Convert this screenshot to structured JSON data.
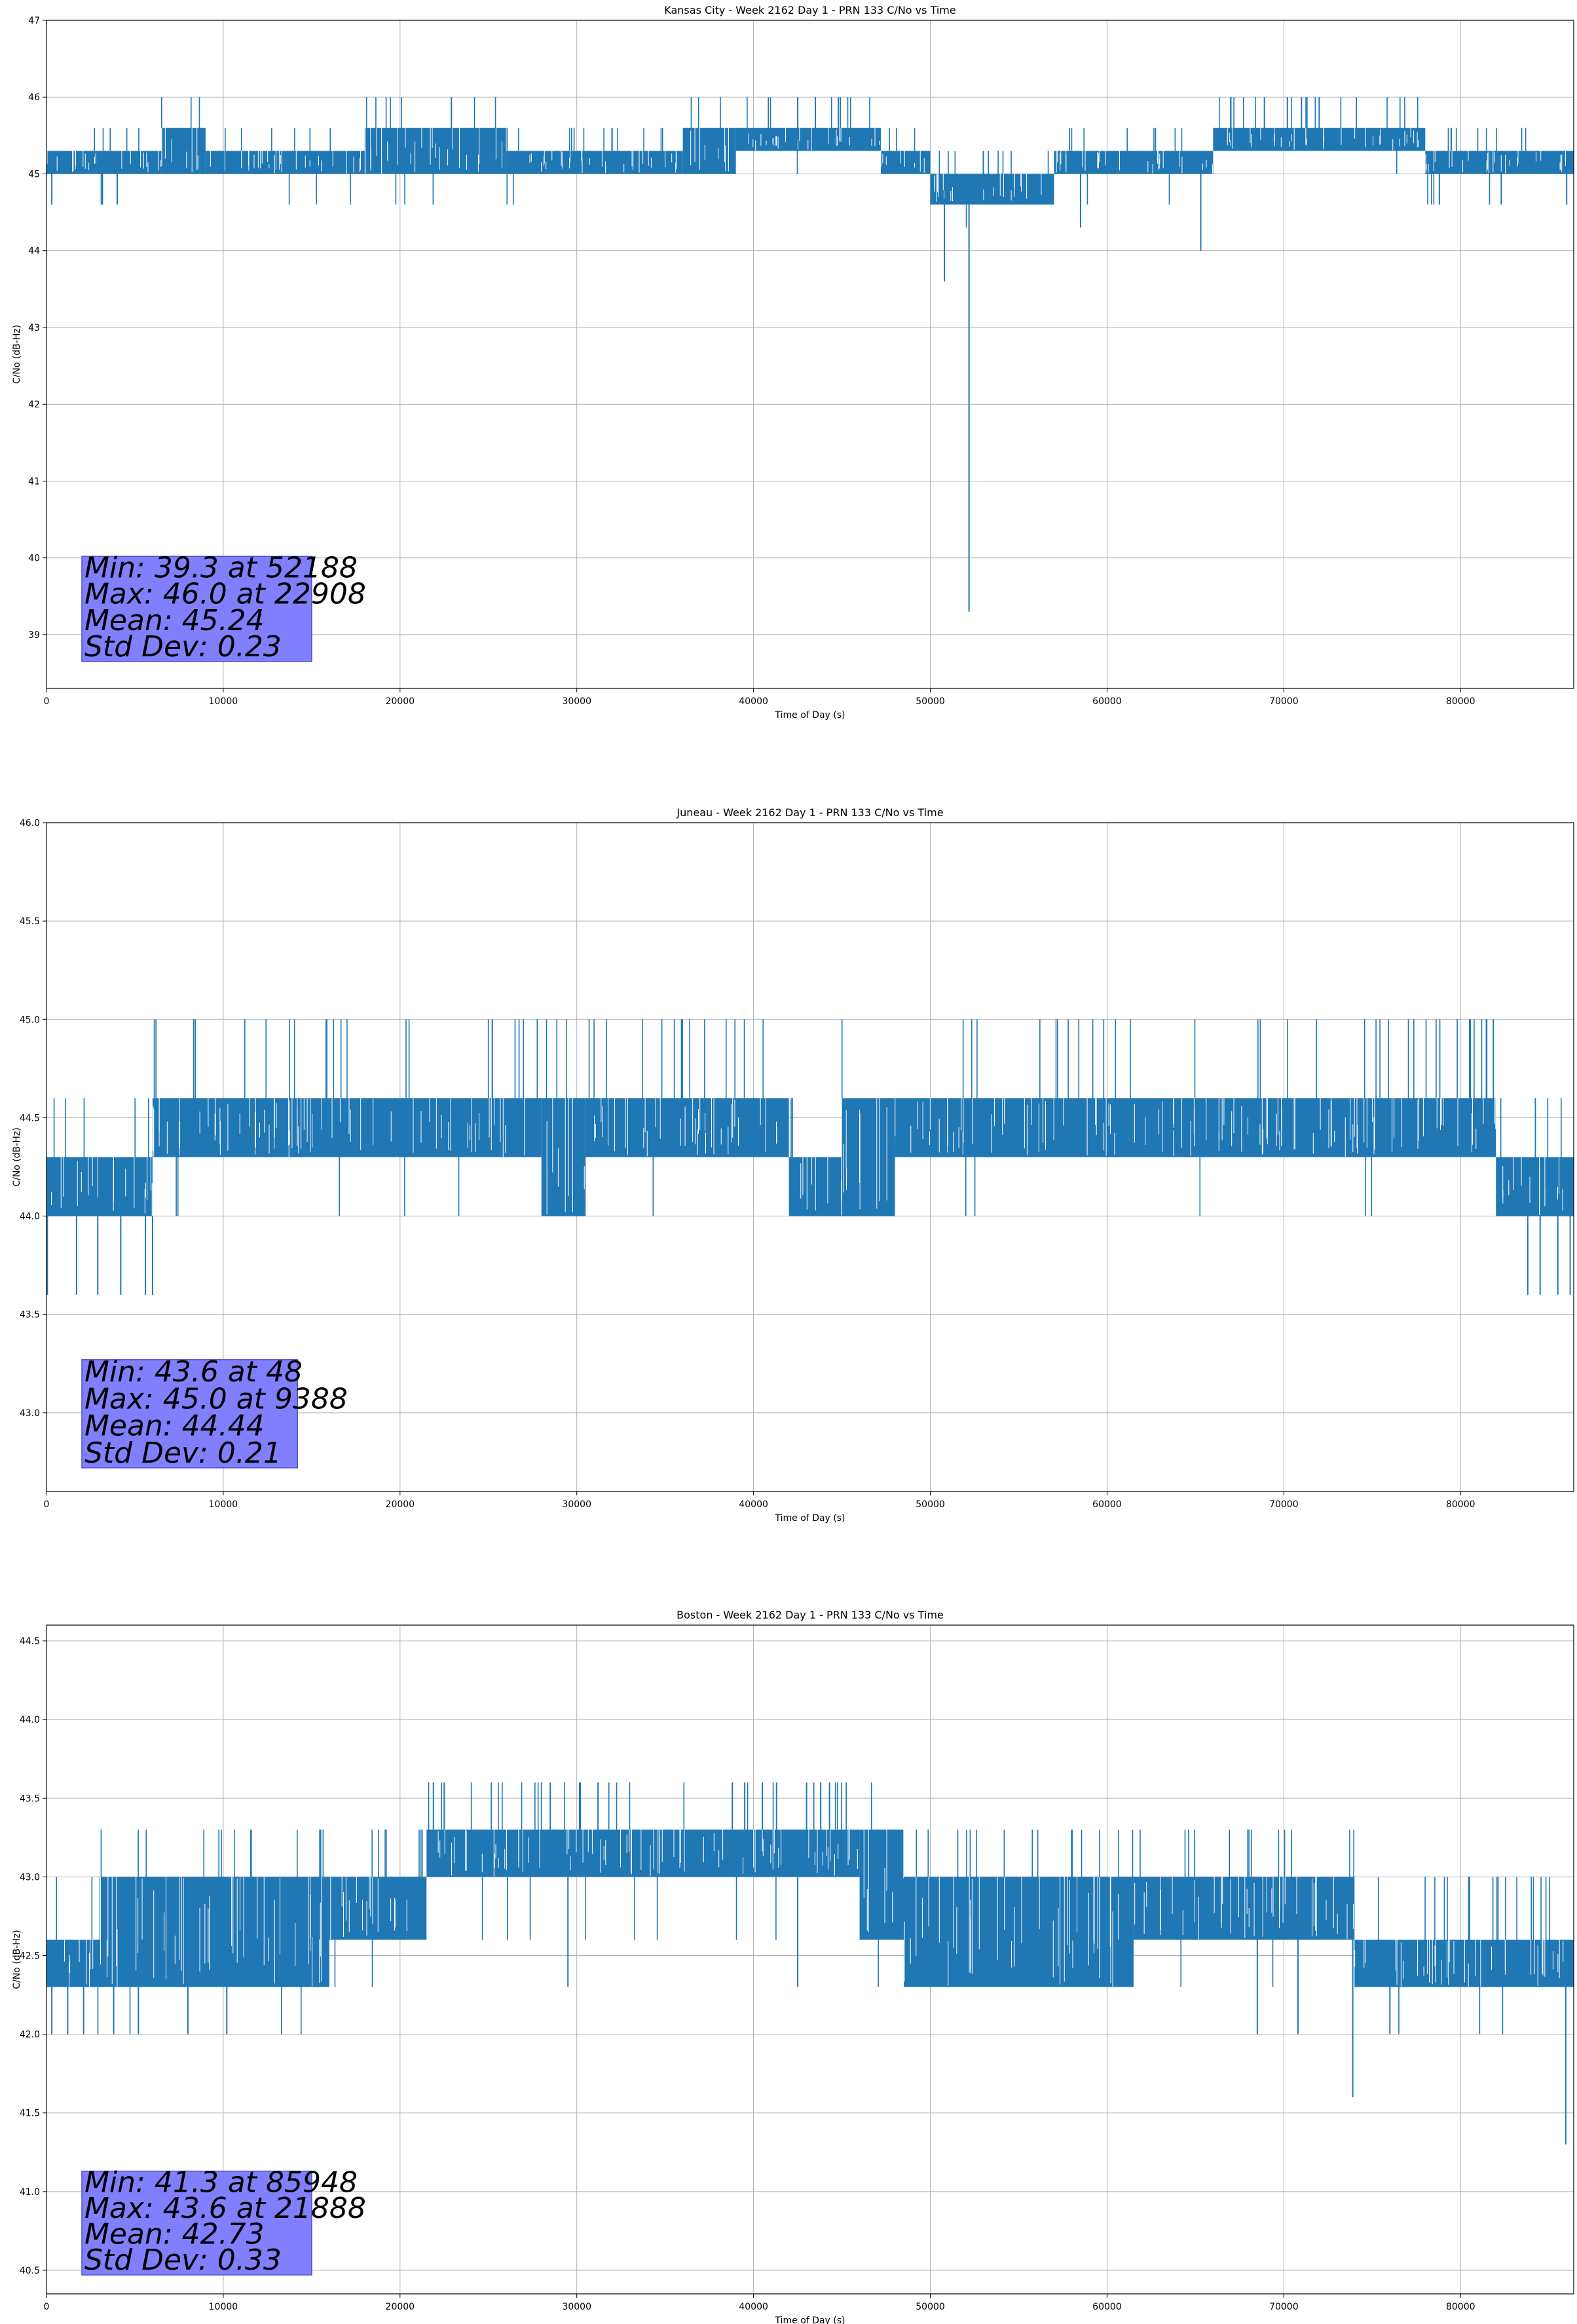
{
  "colors": {
    "line": "#1f77b4",
    "grid": "#b0b0b0",
    "stats_box": "#8080ff",
    "stats_border": "#5050cc"
  },
  "chart_data": [
    {
      "type": "line",
      "title": "Kansas City - Week 2162 Day 1 - PRN 133 C/No vs Time",
      "xlabel": "Time of Day (s)",
      "ylabel": "C/No (dB-Hz)",
      "xlim": [
        0,
        86400
      ],
      "ylim": [
        38.3,
        47.0
      ],
      "grid": true,
      "x_ticks": [
        0,
        10000,
        20000,
        30000,
        40000,
        50000,
        60000,
        70000,
        80000
      ],
      "x_tick_labels": [
        "0",
        "10000",
        "20000",
        "30000",
        "40000",
        "50000",
        "60000",
        "70000",
        "80000"
      ],
      "y_ticks": [
        39,
        40,
        41,
        42,
        43,
        44,
        45,
        46,
        47
      ],
      "y_tick_labels": [
        "39",
        "40",
        "41",
        "42",
        "43",
        "44",
        "45",
        "46",
        "47"
      ],
      "stats": [
        "Min: 39.3 at 52188",
        "Max: 46.0 at 22908",
        "Mean: 45.24",
        "Std Dev: 0.23"
      ],
      "series": [
        {
          "levels": [
            45.0,
            45.3,
            45.6,
            44.6,
            44.3,
            46.0,
            44.0,
            43.6,
            39.3
          ],
          "bands": [
            {
              "x": [
                0,
                6500
              ],
              "y": [
                45.0,
                45.3
              ]
            },
            {
              "x": [
                6500,
                9000
              ],
              "y": [
                45.0,
                45.6
              ]
            },
            {
              "x": [
                9000,
                18000
              ],
              "y": [
                45.0,
                45.3
              ]
            },
            {
              "x": [
                18000,
                26000
              ],
              "y": [
                45.0,
                45.6
              ]
            },
            {
              "x": [
                26000,
                36000
              ],
              "y": [
                45.0,
                45.3
              ]
            },
            {
              "x": [
                36000,
                39000
              ],
              "y": [
                45.0,
                45.6
              ]
            },
            {
              "x": [
                39000,
                47200
              ],
              "y": [
                45.3,
                45.6
              ]
            },
            {
              "x": [
                47200,
                50000
              ],
              "y": [
                45.0,
                45.3
              ]
            },
            {
              "x": [
                50000,
                57000
              ],
              "y": [
                44.6,
                45.0
              ]
            },
            {
              "x": [
                57000,
                66000
              ],
              "y": [
                45.0,
                45.3
              ]
            },
            {
              "x": [
                66000,
                78000
              ],
              "y": [
                45.3,
                45.6
              ]
            },
            {
              "x": [
                78000,
                86400
              ],
              "y": [
                45.0,
                45.3
              ]
            }
          ],
          "spikes": [
            {
              "x": 300,
              "y": 44.6
            },
            {
              "x": 3100,
              "y": 44.6
            },
            {
              "x": 4000,
              "y": 44.6
            },
            {
              "x": 22908,
              "y": 46.0
            },
            {
              "x": 42500,
              "y": 46.0
            },
            {
              "x": 43500,
              "y": 46.0
            },
            {
              "x": 44800,
              "y": 46.0
            },
            {
              "x": 50800,
              "y": 43.6
            },
            {
              "x": 52188,
              "y": 39.3
            },
            {
              "x": 53000,
              "y": 45.3
            },
            {
              "x": 58500,
              "y": 44.3
            },
            {
              "x": 65300,
              "y": 44.0
            },
            {
              "x": 68900,
              "y": 46.0
            },
            {
              "x": 70200,
              "y": 46.0
            },
            {
              "x": 71000,
              "y": 46.0
            },
            {
              "x": 72000,
              "y": 46.0
            },
            {
              "x": 78800,
              "y": 44.6
            },
            {
              "x": 82300,
              "y": 44.6
            },
            {
              "x": 86000,
              "y": 44.6
            }
          ]
        }
      ]
    },
    {
      "type": "line",
      "title": "Juneau - Week 2162 Day 1 - PRN 133 C/No vs Time",
      "xlabel": "Time of Day (s)",
      "ylabel": "C/No (dB-Hz)",
      "xlim": [
        0,
        86400
      ],
      "ylim": [
        42.6,
        46.0
      ],
      "grid": true,
      "x_ticks": [
        0,
        10000,
        20000,
        30000,
        40000,
        50000,
        60000,
        70000,
        80000
      ],
      "x_tick_labels": [
        "0",
        "10000",
        "20000",
        "30000",
        "40000",
        "50000",
        "60000",
        "70000",
        "80000"
      ],
      "y_ticks": [
        43.0,
        43.5,
        44.0,
        44.5,
        45.0,
        45.5,
        46.0
      ],
      "y_tick_labels": [
        "43.0",
        "43.5",
        "44.0",
        "44.5",
        "45.0",
        "45.5",
        "46.0"
      ],
      "stats": [
        "Min: 43.6 at 48",
        "Max: 45.0 at 9388",
        "Mean: 44.44",
        "Std Dev: 0.21"
      ],
      "series": [
        {
          "levels": [
            44.0,
            44.3,
            44.6,
            45.0,
            43.6
          ],
          "bands": [
            {
              "x": [
                0,
                6000
              ],
              "y": [
                44.0,
                44.3
              ]
            },
            {
              "x": [
                6000,
                28000
              ],
              "y": [
                44.3,
                44.6
              ]
            },
            {
              "x": [
                28000,
                30500
              ],
              "y": [
                44.0,
                44.6
              ]
            },
            {
              "x": [
                30500,
                42000
              ],
              "y": [
                44.3,
                44.6
              ]
            },
            {
              "x": [
                42000,
                45000
              ],
              "y": [
                44.0,
                44.3
              ]
            },
            {
              "x": [
                45000,
                48000
              ],
              "y": [
                44.0,
                44.6
              ]
            },
            {
              "x": [
                48000,
                82000
              ],
              "y": [
                44.3,
                44.6
              ]
            },
            {
              "x": [
                82000,
                86400
              ],
              "y": [
                44.0,
                44.3
              ]
            }
          ],
          "spikes": [
            {
              "x": 48,
              "y": 43.6
            },
            {
              "x": 1700,
              "y": 43.6
            },
            {
              "x": 2900,
              "y": 43.6
            },
            {
              "x": 4200,
              "y": 43.6
            },
            {
              "x": 5600,
              "y": 43.6
            },
            {
              "x": 6000,
              "y": 43.6
            },
            {
              "x": 83800,
              "y": 43.6
            },
            {
              "x": 84500,
              "y": 43.6
            },
            {
              "x": 85500,
              "y": 43.6
            },
            {
              "x": 86200,
              "y": 43.6
            }
          ]
        }
      ]
    },
    {
      "type": "line",
      "title": "Boston - Week 2162 Day 1 - PRN 133 C/No vs Time",
      "xlabel": "Time of Day (s)",
      "ylabel": "C/No (dB-Hz)",
      "xlim": [
        0,
        86400
      ],
      "ylim": [
        40.35,
        44.6
      ],
      "grid": true,
      "x_ticks": [
        0,
        10000,
        20000,
        30000,
        40000,
        50000,
        60000,
        70000,
        80000
      ],
      "x_tick_labels": [
        "0",
        "10000",
        "20000",
        "30000",
        "40000",
        "50000",
        "60000",
        "70000",
        "80000"
      ],
      "y_ticks": [
        40.5,
        41.0,
        41.5,
        42.0,
        42.5,
        43.0,
        43.5,
        44.0,
        44.5
      ],
      "y_tick_labels": [
        "40.5",
        "41.0",
        "41.5",
        "42.0",
        "42.5",
        "43.0",
        "43.5",
        "44.0",
        "44.5"
      ],
      "stats": [
        "Min: 41.3 at 85948",
        "Max: 43.6 at 21888",
        "Mean: 42.73",
        "Std Dev: 0.33"
      ],
      "series": [
        {
          "levels": [
            42.0,
            42.3,
            42.6,
            43.0,
            43.3,
            43.6,
            41.6,
            41.3
          ],
          "bands": [
            {
              "x": [
                0,
                3000
              ],
              "y": [
                42.3,
                42.6
              ]
            },
            {
              "x": [
                3000,
                16000
              ],
              "y": [
                42.3,
                43.0
              ]
            },
            {
              "x": [
                16000,
                21500
              ],
              "y": [
                42.6,
                43.0
              ]
            },
            {
              "x": [
                21500,
                46000
              ],
              "y": [
                43.0,
                43.3
              ]
            },
            {
              "x": [
                46000,
                48500
              ],
              "y": [
                42.6,
                43.3
              ]
            },
            {
              "x": [
                48500,
                61500
              ],
              "y": [
                42.3,
                43.0
              ]
            },
            {
              "x": [
                61500,
                74000
              ],
              "y": [
                42.6,
                43.0
              ]
            },
            {
              "x": [
                74000,
                86400
              ],
              "y": [
                42.3,
                42.6
              ]
            }
          ],
          "spikes": [
            {
              "x": 300,
              "y": 42.0
            },
            {
              "x": 1200,
              "y": 42.0
            },
            {
              "x": 2100,
              "y": 42.0
            },
            {
              "x": 3800,
              "y": 42.0
            },
            {
              "x": 5200,
              "y": 42.0
            },
            {
              "x": 8000,
              "y": 42.0
            },
            {
              "x": 10200,
              "y": 42.0
            },
            {
              "x": 21888,
              "y": 43.6
            },
            {
              "x": 22500,
              "y": 43.6
            },
            {
              "x": 28500,
              "y": 43.6
            },
            {
              "x": 30200,
              "y": 43.6
            },
            {
              "x": 31200,
              "y": 43.6
            },
            {
              "x": 38800,
              "y": 43.6
            },
            {
              "x": 39500,
              "y": 43.6
            },
            {
              "x": 40500,
              "y": 43.6
            },
            {
              "x": 41300,
              "y": 43.6
            },
            {
              "x": 43000,
              "y": 43.6
            },
            {
              "x": 43800,
              "y": 43.6
            },
            {
              "x": 44300,
              "y": 43.6
            },
            {
              "x": 42500,
              "y": 42.3
            },
            {
              "x": 29500,
              "y": 42.3
            },
            {
              "x": 68500,
              "y": 42.0
            },
            {
              "x": 70800,
              "y": 42.0
            },
            {
              "x": 73900,
              "y": 41.6
            },
            {
              "x": 76000,
              "y": 42.0
            },
            {
              "x": 85948,
              "y": 41.3
            }
          ]
        }
      ]
    }
  ]
}
